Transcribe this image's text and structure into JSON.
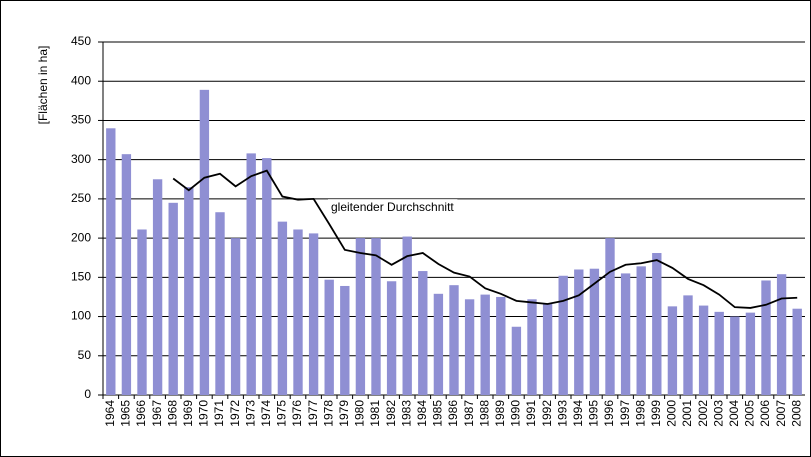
{
  "chart_data": {
    "type": "bar-line",
    "y_label": "[Flächen in ha]",
    "categories": [
      "1964",
      "1965",
      "1966",
      "1967",
      "1968",
      "1969",
      "1970",
      "1971",
      "1972",
      "1973",
      "1974",
      "1975",
      "1976",
      "1977",
      "1978",
      "1979",
      "1980",
      "1981",
      "1982",
      "1983",
      "1984",
      "1985",
      "1986",
      "1987",
      "1988",
      "1989",
      "1990",
      "1991",
      "1992",
      "1993",
      "1994",
      "1995",
      "1996",
      "1997",
      "1998",
      "1999",
      "2000",
      "2001",
      "2002",
      "2003",
      "2004",
      "2005",
      "2006",
      "2007",
      "2008"
    ],
    "series": [
      {
        "type": "bar",
        "color": "#8f8fd3",
        "values": [
          340,
          307,
          211,
          275,
          245,
          265,
          389,
          233,
          200,
          308,
          302,
          221,
          211,
          206,
          147,
          139,
          200,
          200,
          145,
          202,
          158,
          129,
          140,
          122,
          128,
          125,
          87,
          122,
          117,
          152,
          160,
          161,
          200,
          155,
          164,
          181,
          113,
          127,
          114,
          106,
          100,
          105,
          146,
          154,
          110
        ]
      },
      {
        "type": "line",
        "name": "gleitender Durchschnitt",
        "color": "#000000",
        "values": [
          null,
          null,
          null,
          null,
          276,
          261,
          277,
          282,
          266,
          279,
          286,
          253,
          249,
          250,
          218,
          185,
          181,
          178,
          166,
          177,
          181,
          167,
          156,
          151,
          136,
          129,
          120,
          118,
          116,
          120,
          127,
          142,
          157,
          166,
          168,
          172,
          162,
          148,
          140,
          128,
          112,
          111,
          115,
          123,
          124
        ]
      }
    ],
    "ylim": [
      0,
      450
    ],
    "yticks": [
      0,
      50,
      100,
      150,
      200,
      250,
      300,
      350,
      400,
      450
    ],
    "grid": true
  }
}
